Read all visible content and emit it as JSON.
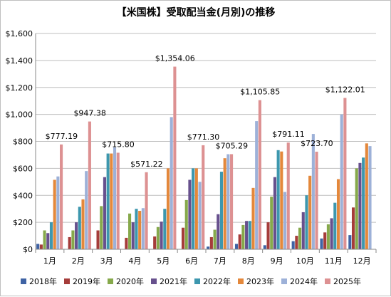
{
  "chart_data": {
    "type": "bar",
    "title": "【米国株】受取配当金(月別)の推移",
    "categories": [
      "1月",
      "2月",
      "3月",
      "4月",
      "5月",
      "6月",
      "7月",
      "8月",
      "9月",
      "10月",
      "11月",
      "12月"
    ],
    "ylim": [
      0,
      1600
    ],
    "yticks": [
      "$0",
      "$200",
      "$400",
      "$600",
      "$800",
      "$1,000",
      "$1,200",
      "$1,400",
      "$1,600"
    ],
    "grid": true,
    "legend_position": "bottom",
    "series": [
      {
        "name": "2018年",
        "color": "#3f63a4",
        "values": [
          40,
          0,
          0,
          0,
          0,
          0,
          20,
          40,
          30,
          60,
          80,
          105
        ]
      },
      {
        "name": "2019年",
        "color": "#a53c3a",
        "values": [
          35,
          90,
          140,
          85,
          95,
          160,
          90,
          110,
          200,
          100,
          125,
          310
        ]
      },
      {
        "name": "2020年",
        "color": "#86a94b",
        "values": [
          140,
          140,
          320,
          265,
          165,
          365,
          145,
          180,
          390,
          160,
          185,
          600
        ]
      },
      {
        "name": "2021年",
        "color": "#67508d",
        "values": [
          120,
          200,
          535,
          200,
          205,
          515,
          260,
          210,
          535,
          275,
          230,
          640
        ]
      },
      {
        "name": "2022年",
        "color": "#3d97ae",
        "values": [
          200,
          315,
          710,
          300,
          300,
          600,
          575,
          210,
          735,
          400,
          345,
          680
        ]
      },
      {
        "name": "2023年",
        "color": "#e4883b",
        "values": [
          515,
          370,
          710,
          285,
          600,
          600,
          675,
          455,
          725,
          545,
          520,
          785
        ]
      },
      {
        "name": "2024年",
        "color": "#9db1d8",
        "values": [
          540,
          580,
          755,
          305,
          980,
          500,
          705,
          950,
          425,
          855,
          1000,
          765
        ]
      },
      {
        "name": "2025年",
        "color": "#dd9192",
        "values": [
          777.19,
          947.38,
          715.8,
          571.22,
          1354.06,
          771.3,
          705.29,
          1105.85,
          791.11,
          723.7,
          1122.01,
          null
        ]
      }
    ],
    "annotations": [
      "$777.19",
      "$947.38",
      "$715.80",
      "$571.22",
      "$1,354.06",
      "$771.30",
      "$705.29",
      "$1,105.85",
      "$791.11",
      "$723.70",
      "$1,122.01"
    ]
  }
}
